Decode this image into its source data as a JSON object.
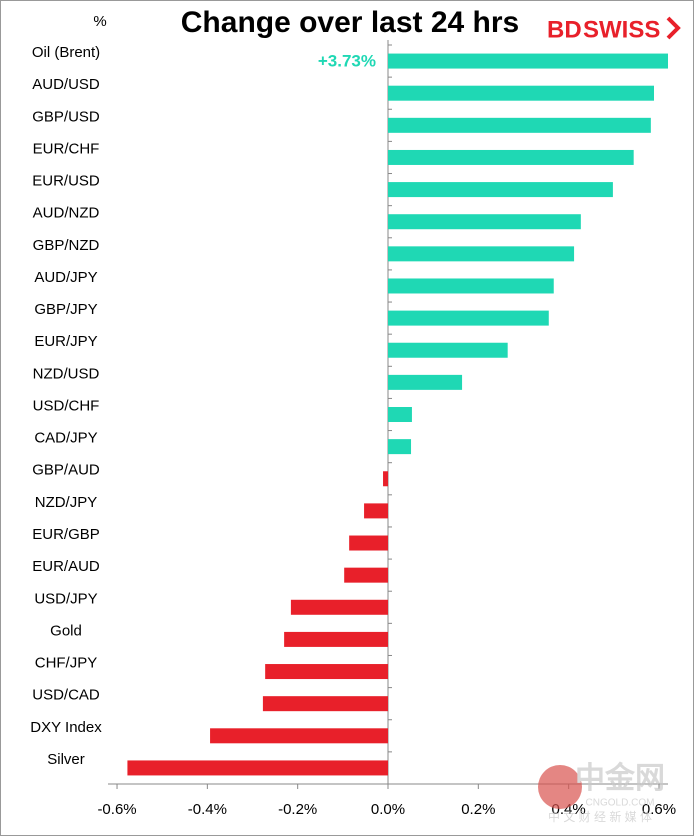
{
  "chart_data": {
    "type": "bar",
    "orientation": "horizontal",
    "title": "Change over last 24 hrs",
    "y_label": "%",
    "brand": {
      "part1": "BD",
      "part2": "SWISS"
    },
    "watermark": {
      "name": "中金网",
      "site": "CNGOLD.COM",
      "tagline": "中 文 财 经 新 媒 体"
    },
    "categories": [
      "Oil (Brent)",
      "AUD/USD",
      "GBP/USD",
      "EUR/CHF",
      "EUR/USD",
      "AUD/NZD",
      "GBP/NZD",
      "AUD/JPY",
      "GBP/JPY",
      "EUR/JPY",
      "NZD/USD",
      "USD/CHF",
      "CAD/JPY",
      "GBP/AUD",
      "NZD/JPY",
      "EUR/GBP",
      "EUR/AUD",
      "USD/JPY",
      "Gold",
      "CHF/JPY",
      "USD/CAD",
      "DXY Index",
      "Silver"
    ],
    "values": [
      3.73,
      0.589,
      0.582,
      0.544,
      0.498,
      0.427,
      0.412,
      0.367,
      0.356,
      0.265,
      0.164,
      0.053,
      0.051,
      -0.011,
      -0.053,
      -0.086,
      -0.097,
      -0.215,
      -0.23,
      -0.272,
      -0.277,
      -0.394,
      -0.577
    ],
    "value_labels": [
      "+3.73%",
      null,
      null,
      null,
      null,
      null,
      null,
      null,
      null,
      null,
      null,
      null,
      null,
      null,
      null,
      null,
      null,
      null,
      null,
      null,
      null,
      null,
      null
    ],
    "positive_color": "#1fd8b4",
    "negative_color": "#e8202a",
    "xlim": [
      -0.62,
      0.62
    ],
    "xticks": [
      {
        "value": -0.6,
        "label": "-0.6%"
      },
      {
        "value": -0.4,
        "label": "-0.4%"
      },
      {
        "value": -0.2,
        "label": "-0.2%"
      },
      {
        "value": 0,
        "label": "0.0%"
      },
      {
        "value": 0.2,
        "label": "0.2%"
      },
      {
        "value": 0.4,
        "label": "0.4%"
      },
      {
        "value": 0.6,
        "label": "0.6%"
      }
    ],
    "grid": false
  }
}
